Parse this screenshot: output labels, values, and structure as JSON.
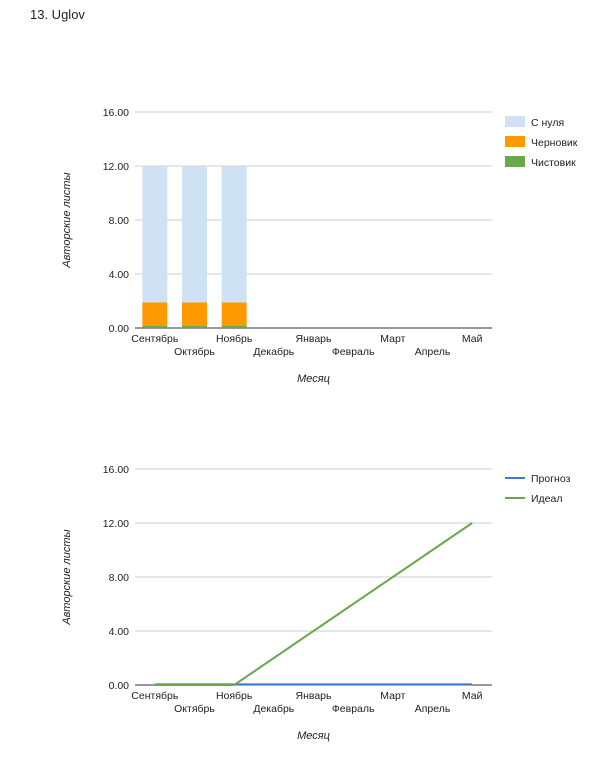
{
  "page": {
    "title": "13. Uglov"
  },
  "colors": {
    "from_scratch": "#cfe2f3",
    "draft": "#ff9900",
    "final": "#6aa84f",
    "forecast": "#3c78d8",
    "ideal": "#6aa84f",
    "grid": "#cccccc"
  },
  "chart_data": [
    {
      "type": "bar",
      "stacked": true,
      "categories": [
        "Сентябрь",
        "Октябрь",
        "Ноябрь",
        "Декабрь",
        "Январь",
        "Февраль",
        "Март",
        "Апрель",
        "Май"
      ],
      "series": [
        {
          "name": "Чистовик",
          "values": [
            0.15,
            0.15,
            0.15,
            0,
            0,
            0,
            0,
            0,
            0
          ]
        },
        {
          "name": "Черновик",
          "values": [
            1.75,
            1.75,
            1.75,
            0,
            0,
            0,
            0,
            0,
            0
          ]
        },
        {
          "name": "С нуля",
          "values": [
            10.1,
            10.1,
            10.1,
            0,
            0,
            0,
            0,
            0,
            0
          ]
        }
      ],
      "legend_order": [
        "С нуля",
        "Черновик",
        "Чистовик"
      ],
      "xlabel": "Месяц",
      "ylabel": "Авторские листы",
      "ylim": [
        0,
        16
      ],
      "yticks": [
        "0.00",
        "4.00",
        "8.00",
        "12.00",
        "16.00"
      ],
      "grid": true,
      "legend_position": "right"
    },
    {
      "type": "line",
      "categories": [
        "Сентябрь",
        "Октябрь",
        "Ноябрь",
        "Декабрь",
        "Январь",
        "Февраль",
        "Март",
        "Апрель",
        "Май"
      ],
      "series": [
        {
          "name": "Прогноз",
          "values": [
            0.05,
            0.05,
            0.05,
            0.05,
            0.05,
            0.05,
            0.05,
            0.05,
            0.05
          ]
        },
        {
          "name": "Идеал",
          "values": [
            0,
            0,
            0,
            2,
            4,
            6,
            8,
            10,
            12
          ]
        }
      ],
      "xlabel": "Месяц",
      "ylabel": "Авторские листы",
      "ylim": [
        0,
        16
      ],
      "yticks": [
        "0.00",
        "4.00",
        "8.00",
        "12.00",
        "16.00"
      ],
      "grid": true,
      "legend_position": "right"
    }
  ]
}
